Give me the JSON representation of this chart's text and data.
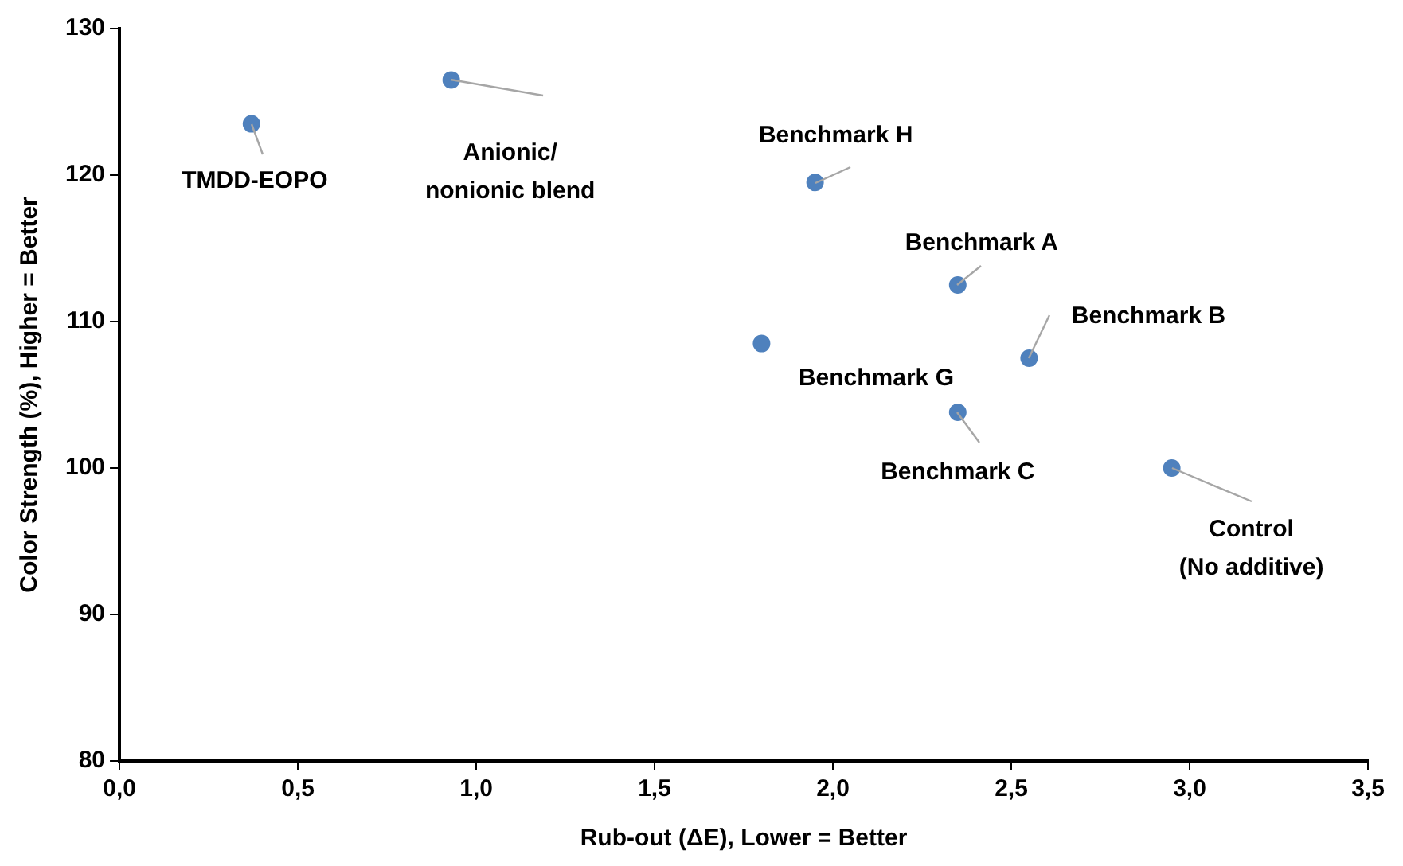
{
  "chart_data": {
    "type": "scatter",
    "xlabel": "Rub-out (ΔE), Lower = Better",
    "ylabel": "Color Strength (%), Higher = Better",
    "x": [
      0.37,
      0.93,
      1.95,
      2.35,
      1.8,
      2.55,
      2.35,
      2.95
    ],
    "values": [
      123.5,
      126.5,
      119.5,
      112.5,
      108.5,
      107.5,
      103.8,
      100
    ],
    "color": "#4f81bd",
    "marker": "circle",
    "grid": false,
    "legend": false,
    "xlim": [
      0,
      3.5
    ],
    "ylim": [
      80,
      130
    ],
    "xticks": [
      {
        "value": 0,
        "label": "0,0"
      },
      {
        "value": 0.5,
        "label": "0,5"
      },
      {
        "value": 1,
        "label": "1,0"
      },
      {
        "value": 1.5,
        "label": "1,5"
      },
      {
        "value": 2,
        "label": "2,0"
      },
      {
        "value": 2.5,
        "label": "2,5"
      },
      {
        "value": 3,
        "label": "3,0"
      },
      {
        "value": 3.5,
        "label": "3,5"
      }
    ],
    "yticks": [
      80,
      90,
      100,
      110,
      120,
      130
    ],
    "annotations": [
      {
        "text": "TMDD-EOPO",
        "x": 0.37,
        "y": 123.5
      },
      {
        "text": "Anionic/\nnonionic blend",
        "x": 0.93,
        "y": 126.5
      },
      {
        "text": "Benchmark H",
        "x": 1.95,
        "y": 119.5
      },
      {
        "text": "Benchmark A",
        "x": 2.35,
        "y": 112.5
      },
      {
        "text": "Benchmark G",
        "x": 1.8,
        "y": 108.5
      },
      {
        "text": "Benchmark B",
        "x": 2.55,
        "y": 107.5
      },
      {
        "text": "Benchmark C",
        "x": 2.35,
        "y": 103.8
      },
      {
        "text": "Control\n(No additive)",
        "x": 2.95,
        "y": 100
      }
    ]
  }
}
